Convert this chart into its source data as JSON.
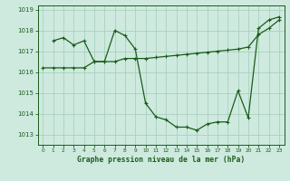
{
  "title": "Graphe pression niveau de la mer (hPa)",
  "background_color": "#ceeadf",
  "grid_color": "#aacfbf",
  "line_color": "#1a5c1a",
  "marker_color": "#1a5c1a",
  "xlim": [
    -0.5,
    23.5
  ],
  "ylim": [
    1012.5,
    1019.2
  ],
  "xticks": [
    0,
    1,
    2,
    3,
    4,
    5,
    6,
    7,
    8,
    9,
    10,
    11,
    12,
    13,
    14,
    15,
    16,
    17,
    18,
    19,
    20,
    21,
    22,
    23
  ],
  "yticks": [
    1013,
    1014,
    1015,
    1016,
    1017,
    1018,
    1019
  ],
  "series1": {
    "x": [
      0,
      1,
      2,
      3,
      4,
      5,
      6,
      7,
      8,
      9,
      10,
      11,
      12,
      13,
      14,
      15,
      16,
      17,
      18,
      19,
      20,
      21,
      22,
      23
    ],
    "y": [
      1016.2,
      1016.2,
      1016.2,
      1016.2,
      1016.2,
      1016.5,
      1016.5,
      1016.5,
      1016.65,
      1016.65,
      1016.65,
      1016.7,
      1016.75,
      1016.8,
      1016.85,
      1016.9,
      1016.95,
      1017.0,
      1017.05,
      1017.1,
      1017.2,
      1017.8,
      1018.1,
      1018.5
    ]
  },
  "series2": {
    "x": [
      1,
      2,
      3,
      4,
      5,
      6,
      7,
      8,
      9,
      10,
      11,
      12,
      13,
      14,
      15,
      16,
      17,
      18,
      19,
      20,
      21,
      22,
      23
    ],
    "y": [
      1017.5,
      1017.65,
      1017.3,
      1017.5,
      1016.5,
      1016.5,
      1018.0,
      1017.75,
      1017.1,
      1014.5,
      1013.85,
      1013.7,
      1013.35,
      1013.35,
      1013.2,
      1013.5,
      1013.6,
      1013.6,
      1015.1,
      1013.8,
      1018.1,
      1018.5,
      1018.65
    ]
  }
}
